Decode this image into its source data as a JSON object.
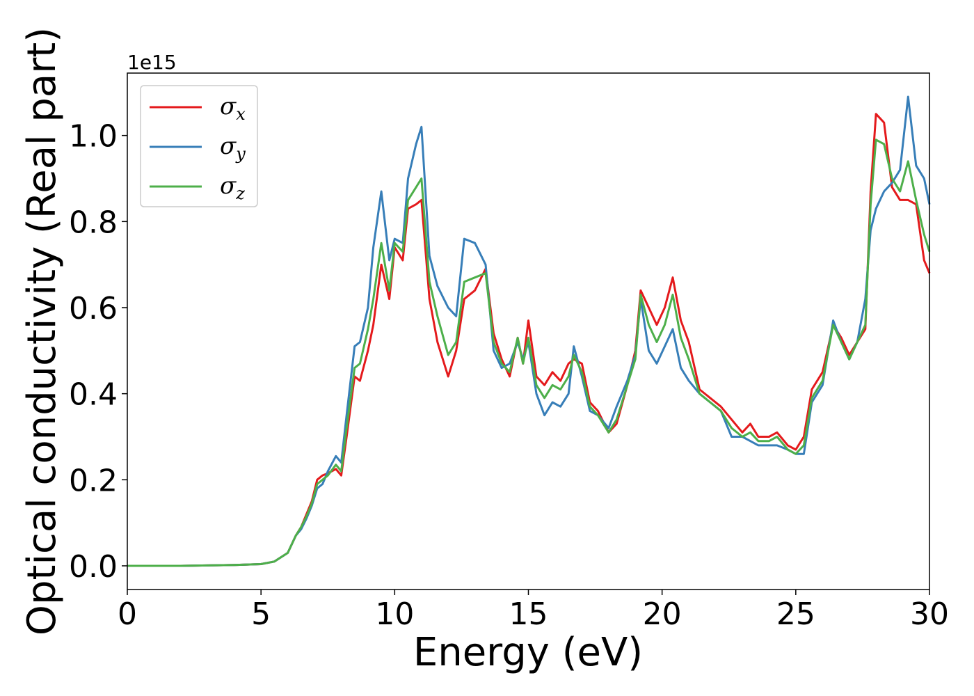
{
  "chart_data": {
    "type": "line",
    "xlabel": "Energy (eV)",
    "ylabel": "Optical conductivity (Real part)",
    "y_offset_text": "1e15",
    "xlim": [
      0,
      30
    ],
    "ylim": [
      -0.055,
      1.145
    ],
    "y_scale_factor": 1000000000000000.0,
    "x_ticks": [
      0,
      5,
      10,
      15,
      20,
      25,
      30
    ],
    "x_tick_labels": [
      "0",
      "5",
      "10",
      "15",
      "20",
      "25",
      "30"
    ],
    "y_ticks": [
      0.0,
      0.2,
      0.4,
      0.6,
      0.8,
      1.0
    ],
    "y_tick_labels": [
      "0.0",
      "0.2",
      "0.4",
      "0.6",
      "0.8",
      "1.0"
    ],
    "grid": false,
    "legend_position": "top-left",
    "series": [
      {
        "name": "σx",
        "legend_base": "σ",
        "legend_sub": "x",
        "color": "#e41a1c",
        "x": [
          0,
          1,
          2,
          3,
          4,
          5,
          5.5,
          6,
          6.3,
          6.5,
          6.7,
          6.9,
          7.1,
          7.3,
          7.5,
          7.8,
          8.0,
          8.2,
          8.5,
          8.7,
          9.0,
          9.2,
          9.5,
          9.8,
          10.0,
          10.3,
          10.5,
          10.8,
          11.0,
          11.3,
          11.6,
          12.0,
          12.3,
          12.6,
          13.0,
          13.4,
          13.7,
          14.0,
          14.3,
          14.6,
          14.8,
          15.0,
          15.3,
          15.6,
          15.9,
          16.2,
          16.5,
          16.7,
          17.0,
          17.3,
          17.6,
          18.0,
          18.3,
          18.7,
          19.0,
          19.2,
          19.5,
          19.8,
          20.1,
          20.4,
          20.7,
          21.0,
          21.4,
          21.8,
          22.2,
          22.6,
          23.0,
          23.3,
          23.6,
          24.0,
          24.3,
          24.7,
          25.0,
          25.3,
          25.6,
          26.0,
          26.4,
          26.7,
          27.0,
          27.3,
          27.6,
          27.8,
          28.0,
          28.3,
          28.6,
          28.9,
          29.2,
          29.5,
          29.8,
          30.0
        ],
        "values": [
          0,
          0,
          0,
          0.001,
          0.002,
          0.004,
          0.01,
          0.03,
          0.07,
          0.09,
          0.12,
          0.15,
          0.2,
          0.21,
          0.215,
          0.225,
          0.21,
          0.3,
          0.44,
          0.43,
          0.5,
          0.56,
          0.7,
          0.62,
          0.74,
          0.71,
          0.83,
          0.84,
          0.85,
          0.62,
          0.52,
          0.44,
          0.5,
          0.62,
          0.64,
          0.69,
          0.54,
          0.48,
          0.44,
          0.53,
          0.47,
          0.57,
          0.44,
          0.42,
          0.45,
          0.43,
          0.47,
          0.48,
          0.47,
          0.38,
          0.36,
          0.31,
          0.33,
          0.42,
          0.5,
          0.64,
          0.6,
          0.56,
          0.6,
          0.67,
          0.57,
          0.52,
          0.41,
          0.39,
          0.37,
          0.34,
          0.31,
          0.33,
          0.3,
          0.3,
          0.31,
          0.28,
          0.27,
          0.3,
          0.41,
          0.45,
          0.56,
          0.53,
          0.49,
          0.52,
          0.55,
          0.87,
          1.05,
          1.03,
          0.88,
          0.85,
          0.85,
          0.84,
          0.71,
          0.68
        ]
      },
      {
        "name": "σy",
        "legend_base": "σ",
        "legend_sub": "y",
        "color": "#377eb8",
        "x": [
          0,
          1,
          2,
          3,
          4,
          5,
          5.5,
          6,
          6.3,
          6.5,
          6.7,
          6.9,
          7.1,
          7.3,
          7.5,
          7.8,
          8.0,
          8.2,
          8.5,
          8.7,
          9.0,
          9.2,
          9.5,
          9.8,
          10.0,
          10.3,
          10.5,
          10.8,
          11.0,
          11.3,
          11.6,
          12.0,
          12.3,
          12.6,
          13.0,
          13.4,
          13.7,
          14.0,
          14.3,
          14.6,
          14.8,
          15.0,
          15.3,
          15.6,
          15.9,
          16.2,
          16.5,
          16.7,
          17.0,
          17.3,
          17.6,
          18.0,
          18.3,
          18.7,
          19.0,
          19.2,
          19.5,
          19.8,
          20.1,
          20.4,
          20.7,
          21.0,
          21.4,
          21.8,
          22.2,
          22.6,
          23.0,
          23.3,
          23.6,
          24.0,
          24.3,
          24.7,
          25.0,
          25.3,
          25.6,
          26.0,
          26.4,
          26.7,
          27.0,
          27.3,
          27.6,
          27.8,
          28.0,
          28.3,
          28.6,
          28.9,
          29.2,
          29.5,
          29.8,
          30.0
        ],
        "values": [
          0,
          0,
          0,
          0.001,
          0.002,
          0.004,
          0.01,
          0.03,
          0.07,
          0.085,
          0.11,
          0.14,
          0.18,
          0.19,
          0.22,
          0.255,
          0.24,
          0.35,
          0.51,
          0.52,
          0.6,
          0.74,
          0.87,
          0.71,
          0.76,
          0.75,
          0.9,
          0.98,
          1.02,
          0.72,
          0.65,
          0.6,
          0.58,
          0.76,
          0.75,
          0.7,
          0.5,
          0.46,
          0.47,
          0.52,
          0.48,
          0.52,
          0.4,
          0.35,
          0.38,
          0.37,
          0.4,
          0.51,
          0.44,
          0.36,
          0.35,
          0.32,
          0.37,
          0.43,
          0.49,
          0.62,
          0.5,
          0.47,
          0.51,
          0.55,
          0.46,
          0.43,
          0.4,
          0.38,
          0.36,
          0.3,
          0.3,
          0.29,
          0.28,
          0.28,
          0.28,
          0.27,
          0.26,
          0.26,
          0.38,
          0.42,
          0.57,
          0.52,
          0.48,
          0.52,
          0.62,
          0.78,
          0.83,
          0.87,
          0.89,
          0.92,
          1.09,
          0.93,
          0.9,
          0.84
        ]
      },
      {
        "name": "σz",
        "legend_base": "σ",
        "legend_sub": "z",
        "color": "#4daf4a",
        "x": [
          0,
          1,
          2,
          3,
          4,
          5,
          5.5,
          6,
          6.3,
          6.5,
          6.7,
          6.9,
          7.1,
          7.3,
          7.5,
          7.8,
          8.0,
          8.2,
          8.5,
          8.7,
          9.0,
          9.2,
          9.5,
          9.8,
          10.0,
          10.3,
          10.5,
          10.8,
          11.0,
          11.3,
          11.6,
          12.0,
          12.3,
          12.6,
          13.0,
          13.4,
          13.7,
          14.0,
          14.3,
          14.6,
          14.8,
          15.0,
          15.3,
          15.6,
          15.9,
          16.2,
          16.5,
          16.7,
          17.0,
          17.3,
          17.6,
          18.0,
          18.3,
          18.7,
          19.0,
          19.2,
          19.5,
          19.8,
          20.1,
          20.4,
          20.7,
          21.0,
          21.4,
          21.8,
          22.2,
          22.6,
          23.0,
          23.3,
          23.6,
          24.0,
          24.3,
          24.7,
          25.0,
          25.3,
          25.6,
          26.0,
          26.4,
          26.7,
          27.0,
          27.3,
          27.6,
          27.8,
          28.0,
          28.3,
          28.6,
          28.9,
          29.2,
          29.5,
          29.8,
          30.0
        ],
        "values": [
          0,
          0,
          0,
          0.001,
          0.002,
          0.004,
          0.01,
          0.03,
          0.07,
          0.09,
          0.115,
          0.145,
          0.19,
          0.2,
          0.21,
          0.235,
          0.22,
          0.32,
          0.46,
          0.47,
          0.55,
          0.62,
          0.75,
          0.64,
          0.75,
          0.73,
          0.85,
          0.88,
          0.9,
          0.66,
          0.58,
          0.49,
          0.52,
          0.66,
          0.67,
          0.68,
          0.52,
          0.47,
          0.45,
          0.53,
          0.47,
          0.53,
          0.42,
          0.39,
          0.42,
          0.41,
          0.44,
          0.49,
          0.45,
          0.37,
          0.35,
          0.31,
          0.34,
          0.42,
          0.48,
          0.63,
          0.56,
          0.52,
          0.56,
          0.63,
          0.53,
          0.48,
          0.4,
          0.38,
          0.36,
          0.32,
          0.3,
          0.31,
          0.29,
          0.29,
          0.3,
          0.27,
          0.26,
          0.28,
          0.39,
          0.43,
          0.56,
          0.52,
          0.48,
          0.52,
          0.56,
          0.84,
          0.99,
          0.98,
          0.9,
          0.87,
          0.94,
          0.85,
          0.77,
          0.73
        ]
      }
    ]
  }
}
